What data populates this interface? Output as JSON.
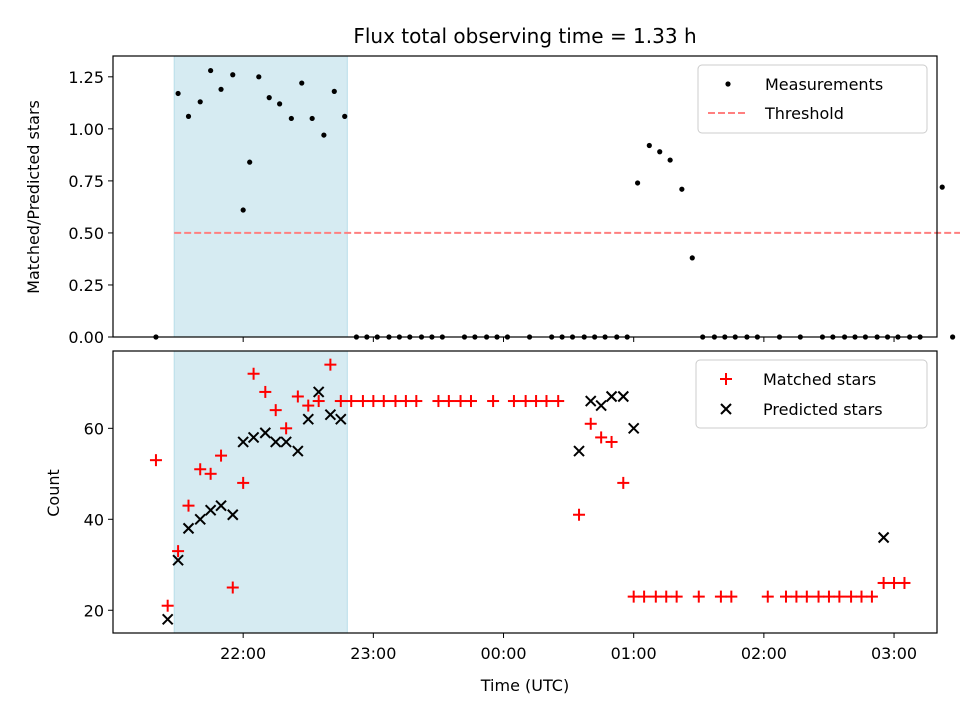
{
  "chart_data": [
    {
      "type": "scatter",
      "title": "Flux total observing time = 1.33 h",
      "xlabel": "",
      "ylabel": "Matched/Predicted stars",
      "ylim": [
        0.0,
        1.35
      ],
      "yticks": [
        "0.00",
        "0.25",
        "0.50",
        "0.75",
        "1.00",
        "1.25"
      ],
      "xlim_hours": [
        21.0,
        27.33
      ],
      "shaded_span_hours": [
        21.47,
        22.8
      ],
      "shaded_color": "#add8e6",
      "legend_placement": "top-right",
      "series": [
        {
          "name": "Measurements",
          "marker": "dot",
          "color": "#000000",
          "points": [
            [
              21.33,
              0.0
            ],
            [
              21.5,
              1.17
            ],
            [
              21.58,
              1.06
            ],
            [
              21.67,
              1.13
            ],
            [
              21.75,
              1.28
            ],
            [
              21.83,
              1.19
            ],
            [
              21.92,
              1.26
            ],
            [
              22.0,
              0.61
            ],
            [
              22.05,
              0.84
            ],
            [
              22.12,
              1.25
            ],
            [
              22.2,
              1.15
            ],
            [
              22.28,
              1.12
            ],
            [
              22.37,
              1.05
            ],
            [
              22.45,
              1.22
            ],
            [
              22.53,
              1.05
            ],
            [
              22.62,
              0.97
            ],
            [
              22.7,
              1.18
            ],
            [
              22.78,
              1.06
            ],
            [
              22.87,
              0.0
            ],
            [
              22.95,
              0.0
            ],
            [
              23.03,
              0.0
            ],
            [
              23.12,
              0.0
            ],
            [
              23.2,
              0.0
            ],
            [
              23.28,
              0.0
            ],
            [
              23.37,
              0.0
            ],
            [
              23.45,
              0.0
            ],
            [
              23.53,
              0.0
            ],
            [
              23.7,
              0.0
            ],
            [
              23.78,
              0.0
            ],
            [
              23.87,
              0.0
            ],
            [
              23.95,
              0.0
            ],
            [
              24.03,
              0.0
            ],
            [
              24.2,
              0.0
            ],
            [
              24.37,
              0.0
            ],
            [
              24.45,
              0.0
            ],
            [
              24.53,
              0.0
            ],
            [
              24.62,
              0.0
            ],
            [
              24.7,
              0.0
            ],
            [
              24.78,
              0.0
            ],
            [
              24.87,
              0.0
            ],
            [
              24.95,
              0.0
            ],
            [
              25.03,
              0.74
            ],
            [
              25.12,
              0.92
            ],
            [
              25.2,
              0.89
            ],
            [
              25.28,
              0.85
            ],
            [
              25.37,
              0.71
            ],
            [
              25.45,
              0.38
            ],
            [
              25.53,
              0.0
            ],
            [
              25.62,
              0.0
            ],
            [
              25.7,
              0.0
            ],
            [
              25.78,
              0.0
            ],
            [
              25.87,
              0.0
            ],
            [
              25.95,
              0.0
            ],
            [
              26.12,
              0.0
            ],
            [
              26.28,
              0.0
            ],
            [
              26.45,
              0.0
            ],
            [
              26.53,
              0.0
            ],
            [
              26.62,
              0.0
            ],
            [
              26.7,
              0.0
            ],
            [
              26.78,
              0.0
            ],
            [
              26.87,
              0.0
            ],
            [
              26.95,
              0.0
            ],
            [
              27.03,
              0.0
            ],
            [
              27.12,
              0.0
            ],
            [
              27.2,
              0.0
            ],
            [
              27.37,
              0.72
            ],
            [
              27.45,
              0.0
            ],
            [
              27.53,
              0.0
            ]
          ]
        },
        {
          "name": "Threshold",
          "marker": "dashed-line",
          "color": "#ff7f7f",
          "points": [
            [
              21.47,
              0.5
            ],
            [
              27.53,
              0.5
            ]
          ]
        }
      ]
    },
    {
      "type": "scatter",
      "title": "",
      "xlabel": "Time (UTC)",
      "ylabel": "Count",
      "ylim": [
        15,
        77
      ],
      "yticks": [
        "20",
        "40",
        "60"
      ],
      "xticks": [
        "22:00",
        "23:00",
        "00:00",
        "01:00",
        "02:00",
        "03:00"
      ],
      "xtick_hours": [
        22,
        23,
        24,
        25,
        26,
        27
      ],
      "xlim_hours": [
        21.0,
        27.33
      ],
      "shaded_span_hours": [
        21.47,
        22.8
      ],
      "shaded_color": "#add8e6",
      "legend_placement": "top-right",
      "series": [
        {
          "name": "Matched stars",
          "marker": "plus",
          "color": "#ff0000",
          "points": [
            [
              21.33,
              53
            ],
            [
              21.42,
              21
            ],
            [
              21.5,
              33
            ],
            [
              21.58,
              43
            ],
            [
              21.67,
              51
            ],
            [
              21.75,
              50
            ],
            [
              21.83,
              54
            ],
            [
              21.92,
              25
            ],
            [
              22.0,
              48
            ],
            [
              22.08,
              72
            ],
            [
              22.17,
              68
            ],
            [
              22.25,
              64
            ],
            [
              22.33,
              60
            ],
            [
              22.42,
              67
            ],
            [
              22.5,
              65
            ],
            [
              22.58,
              66
            ],
            [
              22.67,
              74
            ],
            [
              22.75,
              66
            ],
            [
              22.83,
              66
            ],
            [
              22.92,
              66
            ],
            [
              23.0,
              66
            ],
            [
              23.08,
              66
            ],
            [
              23.17,
              66
            ],
            [
              23.25,
              66
            ],
            [
              23.33,
              66
            ],
            [
              23.5,
              66
            ],
            [
              23.58,
              66
            ],
            [
              23.67,
              66
            ],
            [
              23.75,
              66
            ],
            [
              23.92,
              66
            ],
            [
              24.08,
              66
            ],
            [
              24.17,
              66
            ],
            [
              24.25,
              66
            ],
            [
              24.33,
              66
            ],
            [
              24.42,
              66
            ],
            [
              24.58,
              41
            ],
            [
              24.67,
              61
            ],
            [
              24.75,
              58
            ],
            [
              24.83,
              57
            ],
            [
              24.92,
              48
            ],
            [
              25.0,
              23
            ],
            [
              25.08,
              23
            ],
            [
              25.17,
              23
            ],
            [
              25.25,
              23
            ],
            [
              25.33,
              23
            ],
            [
              25.5,
              23
            ],
            [
              25.67,
              23
            ],
            [
              25.75,
              23
            ],
            [
              26.03,
              23
            ],
            [
              26.17,
              23
            ],
            [
              26.25,
              23
            ],
            [
              26.33,
              23
            ],
            [
              26.42,
              23
            ],
            [
              26.5,
              23
            ],
            [
              26.58,
              23
            ],
            [
              26.67,
              23
            ],
            [
              26.75,
              23
            ],
            [
              26.83,
              23
            ],
            [
              26.92,
              26
            ],
            [
              27.0,
              26
            ],
            [
              27.08,
              26
            ]
          ]
        },
        {
          "name": "Predicted stars",
          "marker": "x",
          "color": "#000000",
          "points": [
            [
              21.42,
              18
            ],
            [
              21.5,
              31
            ],
            [
              21.58,
              38
            ],
            [
              21.67,
              40
            ],
            [
              21.75,
              42
            ],
            [
              21.83,
              43
            ],
            [
              21.92,
              41
            ],
            [
              22.0,
              57
            ],
            [
              22.08,
              58
            ],
            [
              22.17,
              59
            ],
            [
              22.25,
              57
            ],
            [
              22.33,
              57
            ],
            [
              22.42,
              55
            ],
            [
              22.5,
              62
            ],
            [
              22.58,
              68
            ],
            [
              22.67,
              63
            ],
            [
              22.75,
              62
            ],
            [
              24.58,
              55
            ],
            [
              24.67,
              66
            ],
            [
              24.75,
              65
            ],
            [
              24.83,
              67
            ],
            [
              24.92,
              67
            ],
            [
              25.0,
              60
            ],
            [
              26.92,
              36
            ]
          ]
        }
      ]
    }
  ]
}
